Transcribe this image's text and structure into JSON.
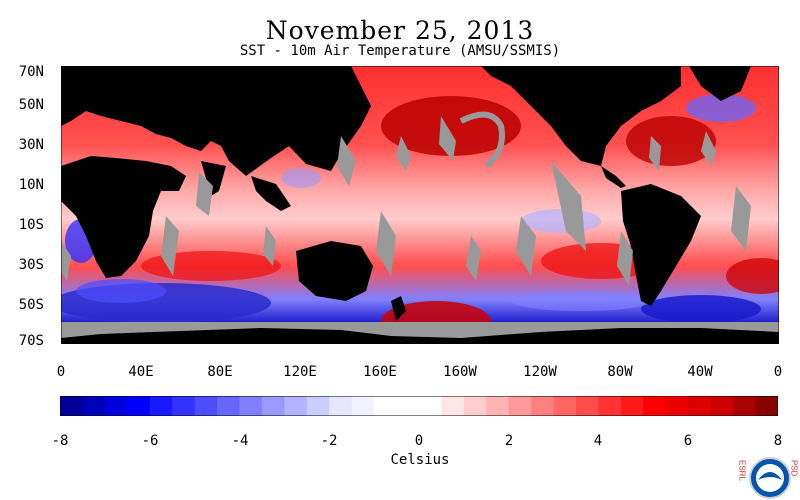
{
  "title": "November 25, 2013",
  "subtitle": "SST - 10m Air Temperature (AMSU/SSMIS)",
  "lat_labels": [
    "70N",
    "50N",
    "30N",
    "10N",
    "10S",
    "30S",
    "50S",
    "70S"
  ],
  "lon_labels": [
    "0",
    "40E",
    "80E",
    "120E",
    "160E",
    "160W",
    "120W",
    "80W",
    "40W",
    "0"
  ],
  "colorbar": {
    "ticks": [
      "-8",
      "-6",
      "-4",
      "-2",
      "0",
      "2",
      "4",
      "6",
      "8"
    ],
    "label": "Celsius",
    "range": [
      -8,
      8
    ],
    "step": 0.5,
    "colors_negative": [
      "#000099",
      "#0000bb",
      "#0000dd",
      "#0000ff",
      "#1a1aff",
      "#3333ff",
      "#4d4dff",
      "#6666ff",
      "#8080ff",
      "#9999ff",
      "#b3b3ff",
      "#ccccff",
      "#e6e6ff",
      "#f2f2ff",
      "#ffffff",
      "#ffffff"
    ],
    "colors_positive": [
      "#ffffff",
      "#ffe6e6",
      "#ffcccc",
      "#ffb3b3",
      "#ff9999",
      "#ff8080",
      "#ff6666",
      "#ff4d4d",
      "#ff3333",
      "#ff1a1a",
      "#ff0000",
      "#ee0000",
      "#dd0000",
      "#cc0000",
      "#aa0000",
      "#880000"
    ]
  },
  "map_colors": {
    "land": "#000000",
    "missing": "#999999",
    "warm": "#ee2222",
    "cool": "#2222cc"
  },
  "logo": {
    "left_text": "ESRL",
    "right_text": "PSD",
    "center_text": "NOAA"
  }
}
